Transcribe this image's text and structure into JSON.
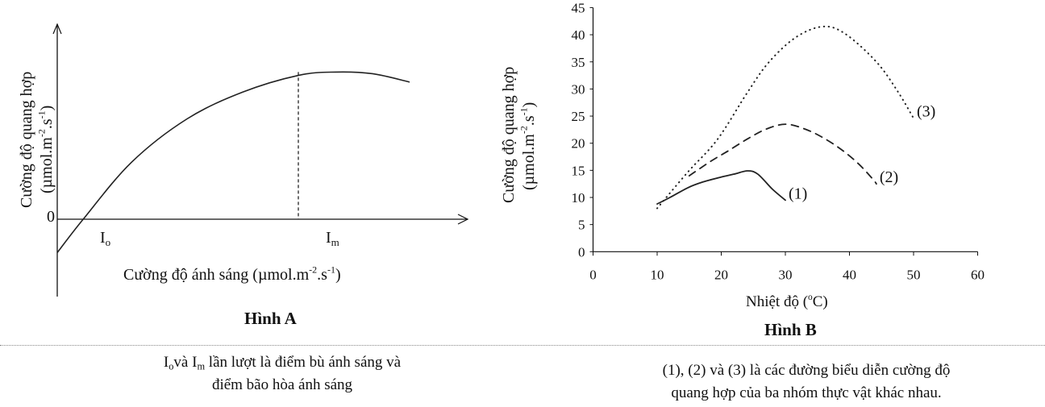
{
  "chart_data": [
    {
      "type": "line",
      "title": "Hình A",
      "ylabel": {
        "line1": "Cường độ quang hợp",
        "unit_prefix": "(µmol.m",
        "exp1": "-2",
        "unit_mid": ".s",
        "exp2": "-1",
        "unit_suffix": ")"
      },
      "xlabel": {
        "text": "Cường độ ánh sáng (µmol.m",
        "exp1": "-2",
        "unit_mid": ".s",
        "exp2": "-1",
        "unit_suffix": ")"
      },
      "y_zero_label": "0",
      "annotations": {
        "io": {
          "base": "I",
          "sub": "o"
        },
        "im": {
          "base": "I",
          "sub": "m"
        }
      },
      "schematic": true,
      "series": [
        {
          "x": [
            0,
            7,
            20,
            35,
            50,
            65,
            75,
            85,
            95
          ],
          "y": [
            -10,
            0,
            17,
            30,
            38,
            43,
            44,
            43.5,
            41
          ]
        }
      ],
      "im_x": 65
    },
    {
      "type": "line",
      "title": "Hình B",
      "ylabel": {
        "line1": "Cường độ quang hợp",
        "unit_prefix": "(µmol.m",
        "exp1": "-2",
        "unit_mid": ".s",
        "exp2": "-1",
        "unit_suffix": ")"
      },
      "xlabel": {
        "prefix": "Nhiệt độ (",
        "sup": "o",
        "suffix": "C)"
      },
      "xlim": [
        0,
        60
      ],
      "ylim": [
        0,
        45
      ],
      "xticks": [
        "0",
        "10",
        "20",
        "30",
        "40",
        "50",
        "60"
      ],
      "yticks": [
        "0",
        "5",
        "10",
        "15",
        "20",
        "25",
        "30",
        "35",
        "40",
        "45"
      ],
      "grid": false,
      "series": [
        {
          "name": "(1)",
          "style": "solid",
          "x": [
            10,
            12,
            14.8,
            17,
            19.8,
            22,
            24.1,
            25.7,
            28,
            30
          ],
          "y": [
            8.8,
            10,
            11.8,
            12.8,
            13.7,
            14.3,
            14.9,
            14.3,
            11.5,
            9.5
          ]
        },
        {
          "name": "(2)",
          "style": "dashed",
          "x": [
            15,
            18.4,
            21.1,
            24.1,
            27,
            30.1,
            33.3,
            36.2,
            39,
            41.5,
            43.7,
            44.2
          ],
          "y": [
            14,
            16.7,
            18.6,
            20.8,
            22.6,
            23.5,
            22.5,
            20.8,
            18.6,
            16.1,
            13.3,
            12.5
          ]
        },
        {
          "name": "(3)",
          "style": "dotted",
          "x": [
            10,
            14.8,
            19.4,
            24.1,
            27.4,
            31.6,
            35.8,
            39.3,
            44.2,
            47.5,
            50
          ],
          "y": [
            8,
            14.7,
            20.7,
            29.4,
            34.9,
            39.5,
            41.5,
            40.2,
            35,
            29.6,
            24.6
          ]
        }
      ]
    }
  ],
  "captions": {
    "left": {
      "io_base": "I",
      "io_sub": "o",
      "mid1": "và ",
      "im_base": "I",
      "im_sub": "m",
      "rest1": " lần lượt là điểm bù  ánh sáng và",
      "line2": "điểm bão hòa ánh sáng"
    },
    "right": {
      "line1": "(1), (2) và (3) là các đường biểu diễn cường độ",
      "line2": "quang hợp của ba nhóm thực vật khác nhau."
    }
  }
}
